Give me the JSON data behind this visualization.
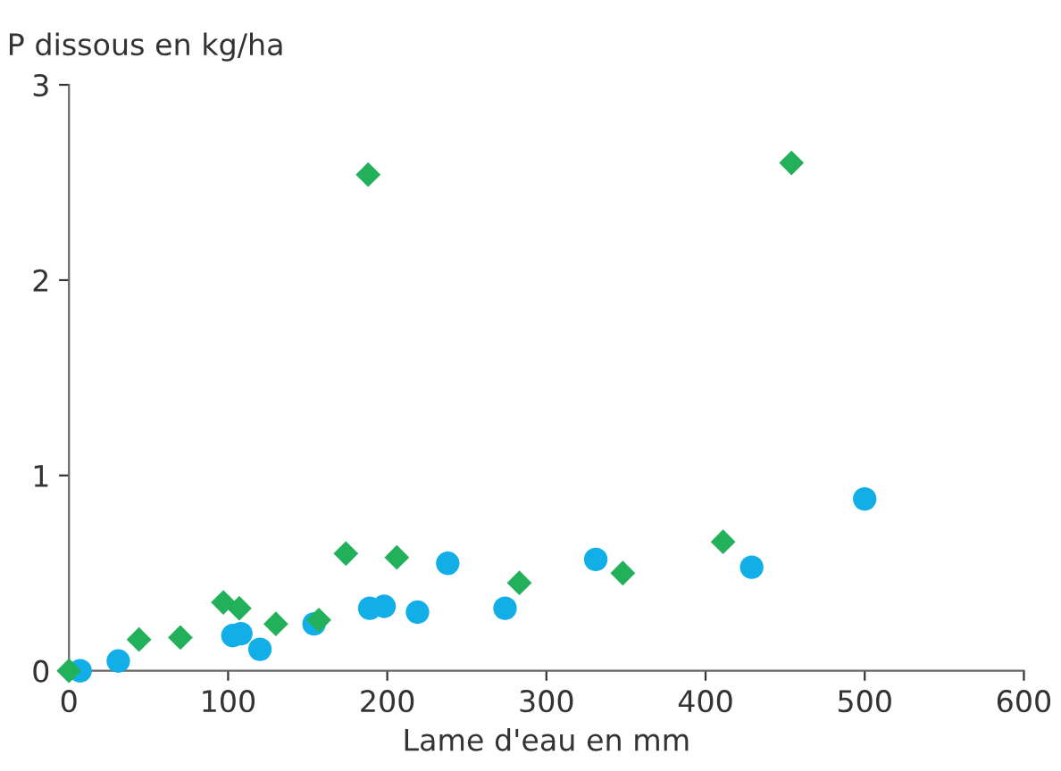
{
  "chart_data": {
    "type": "scatter",
    "xlabel": "Lame d'eau en mm",
    "ylabel": "P dissous en kg/ha",
    "xlim": [
      0,
      600
    ],
    "ylim": [
      0,
      3
    ],
    "xticks": [
      0,
      100,
      200,
      300,
      400,
      500,
      600
    ],
    "yticks": [
      0,
      1,
      2,
      3
    ],
    "grid": false,
    "legend": false,
    "series": [
      {
        "color": "#22b05a",
        "marker": "diamond",
        "x": [
          0,
          44,
          70,
          97,
          107,
          130,
          157,
          174,
          206,
          188,
          283,
          348,
          411,
          454
        ],
        "values": [
          0,
          0.16,
          0.17,
          0.35,
          0.32,
          0.24,
          0.26,
          0.6,
          0.58,
          2.54,
          0.45,
          0.5,
          0.66,
          2.6
        ]
      },
      {
        "color": "#12aee8",
        "marker": "circle",
        "x": [
          7,
          31,
          103,
          108,
          120,
          154,
          189,
          198,
          219,
          238,
          274,
          331,
          429,
          500
        ],
        "values": [
          0,
          0.05,
          0.18,
          0.19,
          0.11,
          0.24,
          0.32,
          0.33,
          0.3,
          0.55,
          0.32,
          0.57,
          0.53,
          0.88
        ]
      }
    ]
  }
}
